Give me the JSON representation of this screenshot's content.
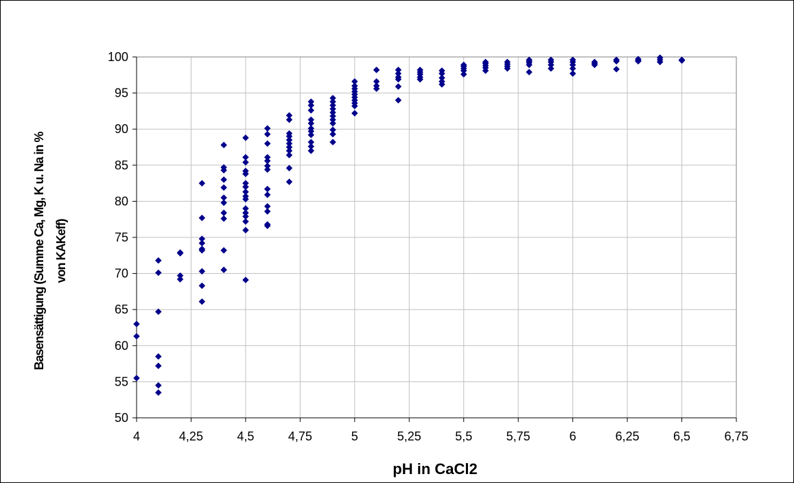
{
  "chart_data": {
    "type": "scatter",
    "title": "",
    "xlabel": "pH in CaCl2",
    "ylabel_line1": "Basensättigung (Summe Ca, Mg, K u. Na in %",
    "ylabel_line2": "von KAKeff)",
    "xlim": [
      4,
      6.75
    ],
    "ylim": [
      50,
      100
    ],
    "x_ticks": [
      "4",
      "4,25",
      "4,5",
      "4,75",
      "5",
      "5,25",
      "5,5",
      "5,75",
      "6",
      "6,25",
      "6,5",
      "6,75"
    ],
    "y_ticks": [
      "50",
      "55",
      "60",
      "65",
      "70",
      "75",
      "80",
      "85",
      "90",
      "95",
      "100"
    ],
    "grid": true,
    "legend": "none",
    "marker_color": "#00008b",
    "points": [
      [
        4.0,
        63.0
      ],
      [
        4.0,
        61.3
      ],
      [
        4.0,
        55.5
      ],
      [
        4.1,
        71.8
      ],
      [
        4.1,
        70.1
      ],
      [
        4.1,
        64.7
      ],
      [
        4.1,
        58.5
      ],
      [
        4.1,
        57.2
      ],
      [
        4.1,
        54.5
      ],
      [
        4.1,
        53.5
      ],
      [
        4.2,
        72.9
      ],
      [
        4.2,
        72.8
      ],
      [
        4.2,
        69.7
      ],
      [
        4.2,
        69.2
      ],
      [
        4.3,
        82.5
      ],
      [
        4.3,
        77.7
      ],
      [
        4.3,
        74.8
      ],
      [
        4.3,
        74.2
      ],
      [
        4.3,
        73.4
      ],
      [
        4.3,
        73.2
      ],
      [
        4.3,
        70.3
      ],
      [
        4.3,
        68.3
      ],
      [
        4.3,
        66.1
      ],
      [
        4.4,
        87.8
      ],
      [
        4.4,
        84.7
      ],
      [
        4.4,
        84.3
      ],
      [
        4.4,
        83.0
      ],
      [
        4.4,
        81.9
      ],
      [
        4.4,
        80.5
      ],
      [
        4.4,
        79.8
      ],
      [
        4.4,
        78.4
      ],
      [
        4.4,
        77.6
      ],
      [
        4.4,
        73.2
      ],
      [
        4.4,
        70.5
      ],
      [
        4.5,
        88.8
      ],
      [
        4.5,
        86.1
      ],
      [
        4.5,
        85.4
      ],
      [
        4.5,
        84.2
      ],
      [
        4.5,
        83.8
      ],
      [
        4.5,
        82.5
      ],
      [
        4.5,
        82.0
      ],
      [
        4.5,
        81.3
      ],
      [
        4.5,
        80.7
      ],
      [
        4.5,
        80.3
      ],
      [
        4.5,
        79.0
      ],
      [
        4.5,
        78.4
      ],
      [
        4.5,
        77.9
      ],
      [
        4.5,
        77.2
      ],
      [
        4.5,
        76.0
      ],
      [
        4.5,
        69.1
      ],
      [
        4.6,
        90.1
      ],
      [
        4.6,
        89.3
      ],
      [
        4.6,
        88.0
      ],
      [
        4.6,
        86.1
      ],
      [
        4.6,
        85.6
      ],
      [
        4.6,
        84.9
      ],
      [
        4.6,
        84.4
      ],
      [
        4.6,
        81.7
      ],
      [
        4.6,
        80.9
      ],
      [
        4.6,
        79.3
      ],
      [
        4.6,
        78.6
      ],
      [
        4.6,
        76.8
      ],
      [
        4.6,
        76.6
      ],
      [
        4.7,
        91.9
      ],
      [
        4.7,
        91.3
      ],
      [
        4.7,
        89.4
      ],
      [
        4.7,
        89.0
      ],
      [
        4.7,
        88.5
      ],
      [
        4.7,
        88.0
      ],
      [
        4.7,
        87.5
      ],
      [
        4.7,
        87.0
      ],
      [
        4.7,
        86.4
      ],
      [
        4.7,
        84.6
      ],
      [
        4.7,
        82.7
      ],
      [
        4.8,
        93.8
      ],
      [
        4.8,
        93.3
      ],
      [
        4.8,
        92.6
      ],
      [
        4.8,
        91.3
      ],
      [
        4.8,
        90.8
      ],
      [
        4.8,
        90.1
      ],
      [
        4.8,
        89.7
      ],
      [
        4.8,
        89.2
      ],
      [
        4.8,
        88.2
      ],
      [
        4.8,
        87.6
      ],
      [
        4.8,
        87.0
      ],
      [
        4.9,
        94.3
      ],
      [
        4.9,
        93.8
      ],
      [
        4.9,
        93.3
      ],
      [
        4.9,
        92.8
      ],
      [
        4.9,
        92.3
      ],
      [
        4.9,
        91.8
      ],
      [
        4.9,
        91.3
      ],
      [
        4.9,
        90.8
      ],
      [
        4.9,
        89.9
      ],
      [
        4.9,
        89.3
      ],
      [
        4.9,
        88.2
      ],
      [
        5.0,
        96.6
      ],
      [
        5.0,
        96.0
      ],
      [
        5.0,
        95.6
      ],
      [
        5.0,
        95.2
      ],
      [
        5.0,
        94.8
      ],
      [
        5.0,
        94.4
      ],
      [
        5.0,
        94.0
      ],
      [
        5.0,
        93.6
      ],
      [
        5.0,
        93.2
      ],
      [
        5.0,
        92.2
      ],
      [
        5.1,
        98.2
      ],
      [
        5.1,
        96.6
      ],
      [
        5.1,
        96.0
      ],
      [
        5.1,
        95.6
      ],
      [
        5.2,
        98.2
      ],
      [
        5.2,
        97.7
      ],
      [
        5.2,
        97.2
      ],
      [
        5.2,
        96.9
      ],
      [
        5.2,
        95.9
      ],
      [
        5.2,
        94.0
      ],
      [
        5.3,
        98.2
      ],
      [
        5.3,
        97.9
      ],
      [
        5.3,
        97.6
      ],
      [
        5.3,
        97.2
      ],
      [
        5.3,
        96.9
      ],
      [
        5.4,
        98.1
      ],
      [
        5.4,
        97.7
      ],
      [
        5.4,
        97.1
      ],
      [
        5.4,
        96.6
      ],
      [
        5.4,
        96.2
      ],
      [
        5.5,
        98.9
      ],
      [
        5.5,
        98.7
      ],
      [
        5.5,
        98.4
      ],
      [
        5.5,
        98.1
      ],
      [
        5.5,
        97.6
      ],
      [
        5.6,
        99.3
      ],
      [
        5.6,
        99.1
      ],
      [
        5.6,
        98.8
      ],
      [
        5.6,
        98.5
      ],
      [
        5.6,
        98.1
      ],
      [
        5.7,
        99.3
      ],
      [
        5.7,
        99.0
      ],
      [
        5.7,
        98.7
      ],
      [
        5.7,
        98.4
      ],
      [
        5.8,
        99.6
      ],
      [
        5.8,
        99.4
      ],
      [
        5.8,
        99.2
      ],
      [
        5.8,
        98.9
      ],
      [
        5.8,
        97.9
      ],
      [
        5.9,
        99.6
      ],
      [
        5.9,
        99.3
      ],
      [
        5.9,
        98.9
      ],
      [
        5.9,
        98.4
      ],
      [
        6.0,
        99.6
      ],
      [
        6.0,
        99.3
      ],
      [
        6.0,
        98.9
      ],
      [
        6.0,
        98.4
      ],
      [
        6.0,
        97.7
      ],
      [
        6.1,
        99.3
      ],
      [
        6.1,
        99.1
      ],
      [
        6.1,
        98.9
      ],
      [
        6.2,
        99.6
      ],
      [
        6.2,
        99.4
      ],
      [
        6.2,
        98.3
      ],
      [
        6.3,
        99.7
      ],
      [
        6.3,
        99.5
      ],
      [
        6.3,
        99.4
      ],
      [
        6.4,
        99.9
      ],
      [
        6.4,
        99.6
      ],
      [
        6.4,
        99.3
      ],
      [
        6.5,
        99.6
      ],
      [
        6.5,
        99.5
      ]
    ]
  }
}
